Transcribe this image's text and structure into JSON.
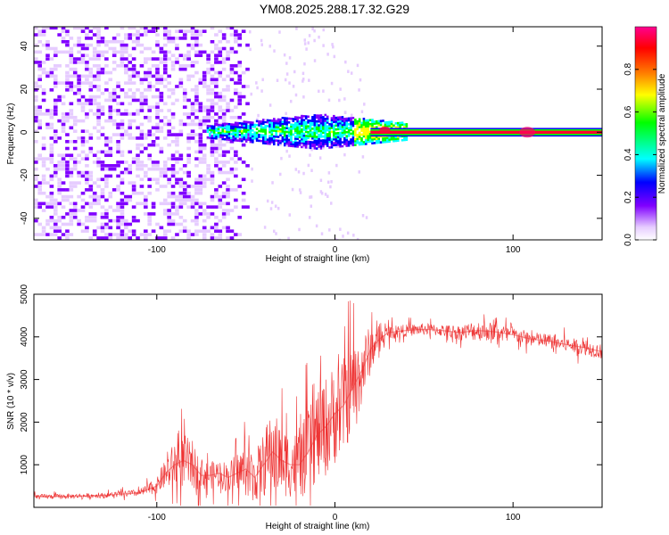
{
  "title": "YM08.2025.288.17.32.G29",
  "chart_data": [
    {
      "type": "heatmap",
      "xlabel": "Height of straight line (km)",
      "ylabel": "Frequency (Hz)",
      "xlim": [
        -169,
        150
      ],
      "ylim": [
        -50,
        49
      ],
      "xticks": [
        -100,
        0,
        100
      ],
      "yticks": [
        -40,
        -20,
        0,
        20,
        40
      ],
      "colorbar": {
        "label": "Normalized spectral amplitude",
        "range": [
          0,
          1
        ],
        "ticks": [
          0.0,
          0.2,
          0.4,
          0.6,
          0.8
        ],
        "tick_labels": [
          "0.0",
          "0.2",
          "0.4",
          "0.6",
          "0.8"
        ],
        "colors": [
          "#ffffff",
          "#e6ccff",
          "#8000ff",
          "#0000ff",
          "#00ffff",
          "#00ff00",
          "#ffff00",
          "#ff8000",
          "#ff0000",
          "#ff0090"
        ]
      },
      "regions": [
        {
          "name": "noise",
          "x": [
            -169,
            -50
          ],
          "freq": [
            -50,
            49
          ],
          "amplitude": 0.08
        },
        {
          "name": "transition",
          "x": [
            -72,
            40
          ],
          "freq": [
            -6,
            6
          ],
          "amplitude": 0.35
        },
        {
          "name": "carrier",
          "x": [
            20,
            150
          ],
          "freq": [
            -1,
            1
          ],
          "amplitude": 0.9
        }
      ]
    },
    {
      "type": "line",
      "xlabel": "Height of straight line (km)",
      "ylabel": "SNR (10 * v/v)",
      "xlim": [
        -169,
        150
      ],
      "ylim": [
        0,
        5000
      ],
      "xticks": [
        -100,
        0,
        100
      ],
      "yticks": [
        1000,
        2000,
        3000,
        4000,
        5000
      ],
      "series": [
        {
          "name": "SNR",
          "color": "#ee3333",
          "x": [
            -169,
            -150,
            -130,
            -110,
            -100,
            -95,
            -90,
            -85,
            -80,
            -75,
            -70,
            -65,
            -60,
            -55,
            -50,
            -45,
            -40,
            -35,
            -30,
            -25,
            -20,
            -15,
            -10,
            -5,
            0,
            5,
            10,
            15,
            20,
            25,
            30,
            40,
            50,
            60,
            70,
            80,
            90,
            100,
            110,
            120,
            130,
            140,
            150
          ],
          "y": [
            250,
            260,
            280,
            340,
            500,
            800,
            1000,
            1100,
            1000,
            750,
            750,
            800,
            700,
            800,
            900,
            700,
            1000,
            1300,
            1100,
            1000,
            1000,
            1300,
            1700,
            1900,
            2200,
            2400,
            2800,
            3200,
            3700,
            3950,
            4100,
            4150,
            4180,
            4150,
            4100,
            4150,
            4120,
            4050,
            3950,
            3900,
            3820,
            3750,
            3650
          ],
          "noise": [
            80,
            80,
            80,
            120,
            250,
            500,
            800,
            900,
            800,
            500,
            450,
            500,
            500,
            700,
            900,
            800,
            1100,
            1400,
            1200,
            1100,
            1200,
            1400,
            1600,
            1700,
            1700,
            1600,
            1500,
            1200,
            800,
            300,
            250,
            200,
            200,
            200,
            250,
            350,
            300,
            250,
            250,
            250,
            250,
            250,
            250
          ]
        }
      ]
    }
  ]
}
